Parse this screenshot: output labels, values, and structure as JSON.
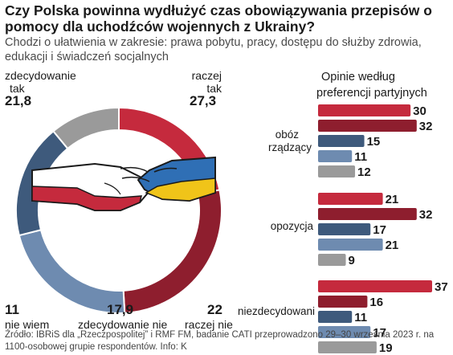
{
  "title": "Czy Polska powinna wydłużyć czas obowiązywania przepisów o pomocy dla uchodźców wojennych z Ukrainy?",
  "subtitle": "Chodzi o ułatwienia w zakresie: prawa pobytu, pracy, dostępu do służby zdrowia, edukacji i świadczeń socjalnych",
  "footer": "Źródło: IBRiS dla „Rzeczpospolitej” i RMF FM, badanie CATI przeprowadzono 29–30 września 2023 r. na 1100-osobowej grupie respondentów. Info: K",
  "icons": {
    "center": "handshake-icon"
  },
  "colors": {
    "zdecydowanie_tak": "#c52a3d",
    "raczej_tak": "#8e1e2e",
    "nie_wiem": "#9a9a9a",
    "zdecydowanie_nie": "#3e5a7c",
    "raczej_nie": "#6e8bb0"
  },
  "chart_data": [
    {
      "type": "pie",
      "title": "",
      "slices": [
        {
          "label_line1": "zdecydowanie",
          "label_line2": "tak",
          "value": 21.8,
          "value_text": "21,8"
        },
        {
          "label_line1": "raczej",
          "label_line2": "tak",
          "value": 27.3,
          "value_text": "27,3"
        },
        {
          "label_line1": "raczej nie",
          "label_line2": "",
          "value": 22,
          "value_text": "22"
        },
        {
          "label_line1": "zdecydowanie nie",
          "label_line2": "",
          "value": 17.9,
          "value_text": "17,9"
        },
        {
          "label_line1": "nie wiem",
          "label_line2": "",
          "value": 11,
          "value_text": "11"
        }
      ],
      "legend": "none"
    },
    {
      "type": "bar",
      "title_line1": "Opinie według",
      "title_line2": "preferencji partyjnych",
      "orientation": "horizontal",
      "groups": [
        {
          "label_line1": "obóz",
          "label_line2": "rządzący",
          "values": [
            30,
            32,
            15,
            11,
            12
          ]
        },
        {
          "label_line1": "opozycja",
          "label_line2": "",
          "values": [
            21,
            32,
            17,
            21,
            9
          ]
        },
        {
          "label_line1": "niezdecydowani",
          "label_line2": "",
          "values": [
            37,
            16,
            11,
            17,
            19
          ]
        }
      ],
      "series_order": [
        "zdecydowanie tak",
        "raczej tak",
        "zdecydowanie nie",
        "raczej nie",
        "nie wiem"
      ],
      "xlim": [
        0,
        37
      ]
    }
  ]
}
